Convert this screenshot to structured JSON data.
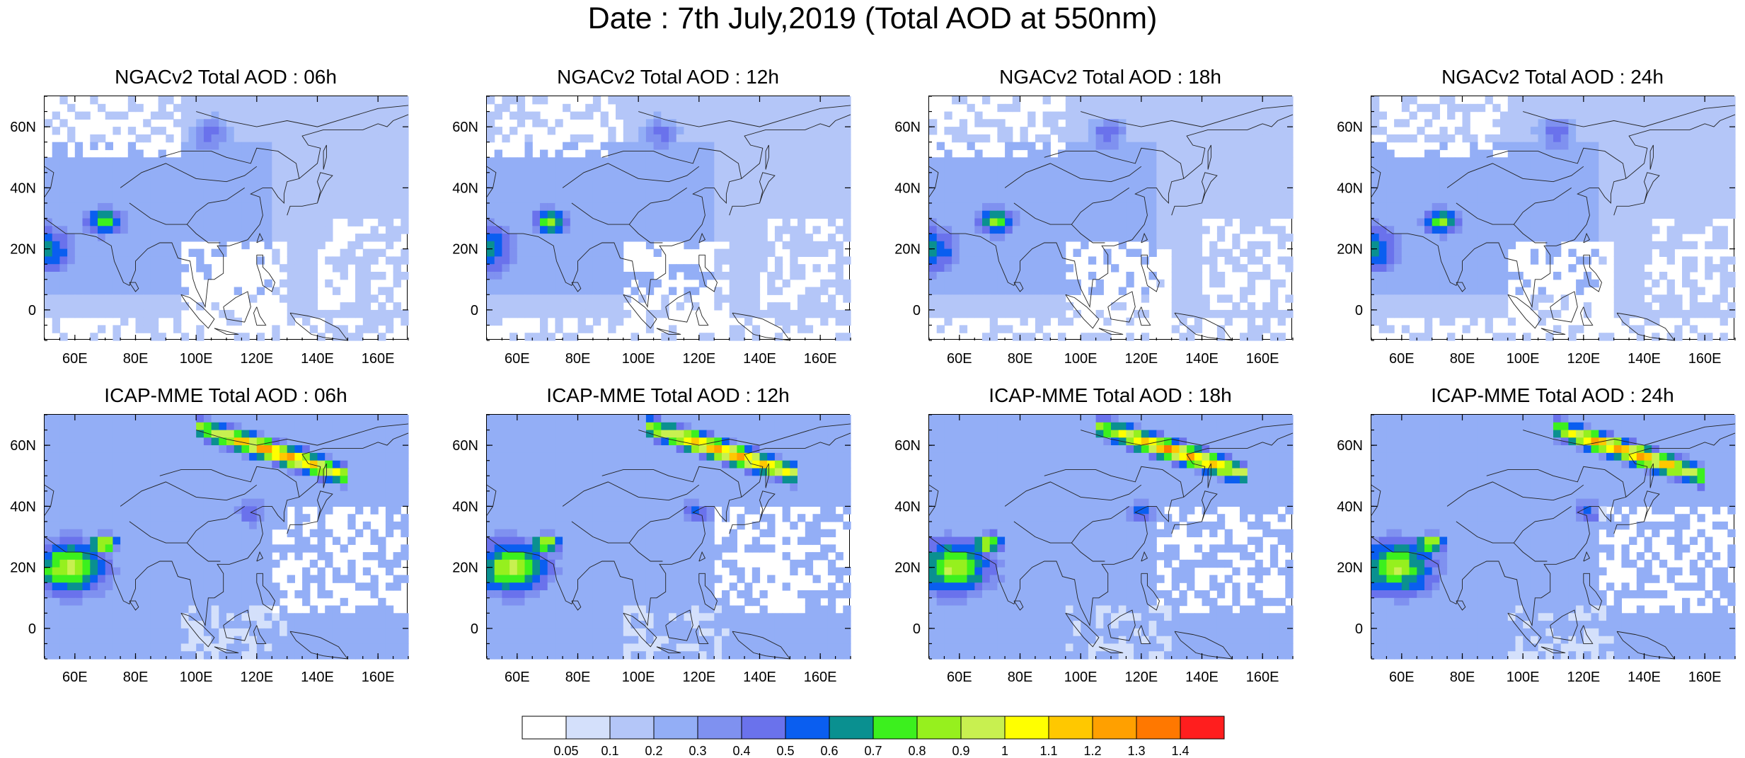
{
  "title": "Date : 7th July,2019 (Total AOD at 550nm)",
  "axes": {
    "lon_range": [
      50,
      170
    ],
    "lat_range": [
      -10,
      70
    ],
    "lon_ticks": [
      "60E",
      "80E",
      "100E",
      "120E",
      "140E",
      "160E"
    ],
    "lon_tick_values": [
      60,
      80,
      100,
      120,
      140,
      160
    ],
    "lat_ticks": [
      "0",
      "20N",
      "40N",
      "60N"
    ],
    "lat_tick_values": [
      0,
      20,
      40,
      60
    ]
  },
  "panels": [
    {
      "title": "NGACv2 Total AOD : 06h",
      "model": "NGACv2",
      "hour": 6
    },
    {
      "title": "NGACv2 Total AOD : 12h",
      "model": "NGACv2",
      "hour": 12
    },
    {
      "title": "NGACv2 Total AOD : 18h",
      "model": "NGACv2",
      "hour": 18
    },
    {
      "title": "NGACv2 Total AOD : 24h",
      "model": "NGACv2",
      "hour": 24
    },
    {
      "title": "ICAP-MME Total AOD : 06h",
      "model": "ICAP-MME",
      "hour": 6
    },
    {
      "title": "ICAP-MME Total AOD : 12h",
      "model": "ICAP-MME",
      "hour": 12
    },
    {
      "title": "ICAP-MME Total AOD : 18h",
      "model": "ICAP-MME",
      "hour": 18
    },
    {
      "title": "ICAP-MME Total AOD : 24h",
      "model": "ICAP-MME",
      "hour": 24
    }
  ],
  "colorbar": {
    "labels": [
      "0.05",
      "0.1",
      "0.2",
      "0.3",
      "0.4",
      "0.5",
      "0.6",
      "0.7",
      "0.8",
      "0.9",
      "1",
      "1.1",
      "1.2",
      "1.3",
      "1.4"
    ],
    "colors": [
      "#ffffff",
      "#d4e0fb",
      "#b4c6f8",
      "#93aef6",
      "#7f91f0",
      "#6a72ec",
      "#0a5ef0",
      "#0a9090",
      "#3cf01e",
      "#96f01e",
      "#c8f050",
      "#ffff00",
      "#ffc800",
      "#ffa000",
      "#ff7800",
      "#ff1e1e"
    ]
  }
}
